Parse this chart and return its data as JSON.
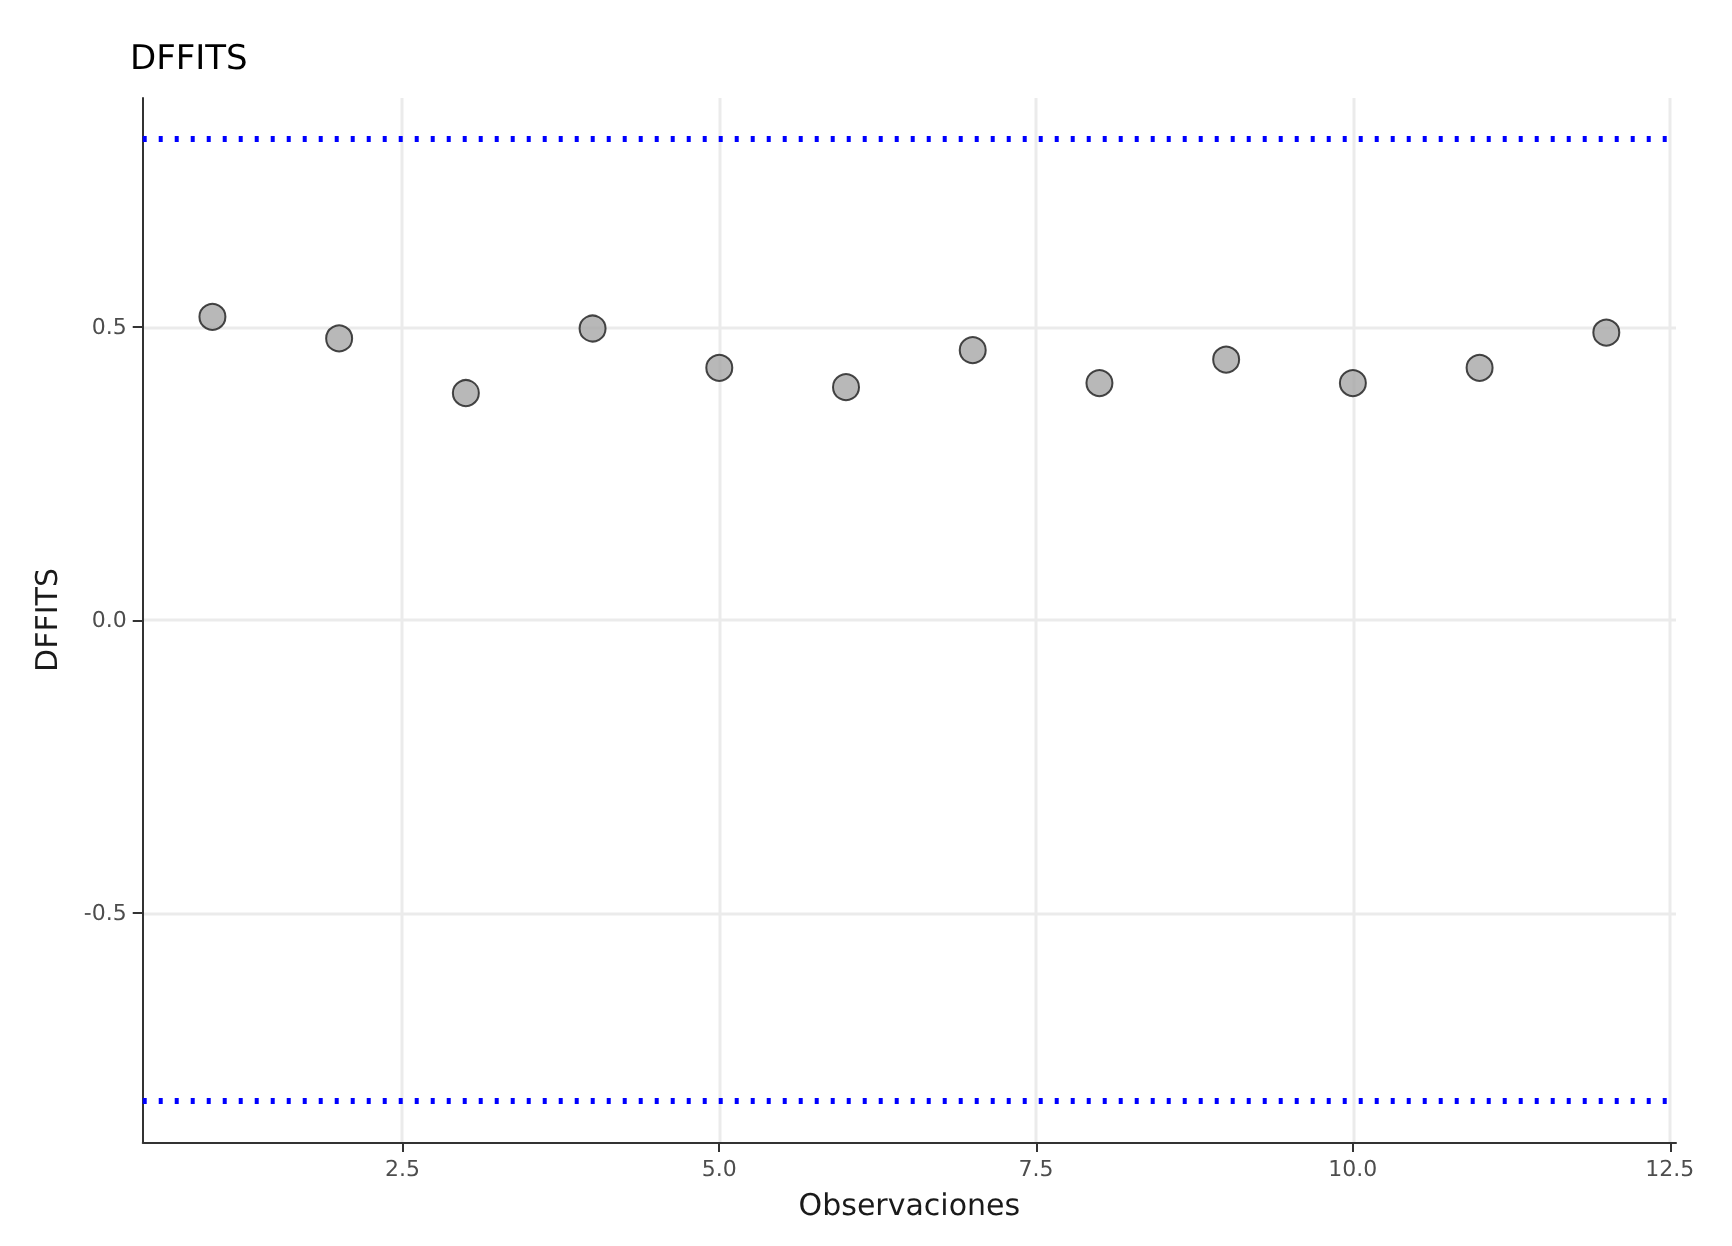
{
  "chart_data": {
    "type": "scatter",
    "title": "DFFITS",
    "xlabel": "Observaciones",
    "ylabel": "DFFITS",
    "x": [
      1,
      2,
      3,
      4,
      5,
      6,
      7,
      8,
      9,
      10,
      11,
      12
    ],
    "series": [
      {
        "color": "#a6a6a6",
        "values": [
          0.517,
          0.48,
          0.387,
          0.497,
          0.43,
          0.397,
          0.46,
          0.404,
          0.444,
          0.404,
          0.43,
          0.49
        ]
      }
    ],
    "xlim": [
      0.45,
      12.55
    ],
    "ylim": [
      -0.89,
      0.89
    ],
    "xticks": [
      2.5,
      {
        "value": 5,
        "label": "5.0"
      },
      7.5,
      {
        "value": 10,
        "label": "10.0"
      },
      12.5
    ],
    "yticks": [
      {
        "value": -0.5,
        "label": "-0.5"
      },
      {
        "value": 0,
        "label": "0.0"
      },
      {
        "value": 0.5,
        "label": "0.5"
      }
    ],
    "ref_lines": [
      {
        "axis": "y",
        "value": 0.816,
        "color": "#0000ff",
        "line_style": "dotted"
      },
      {
        "axis": "y",
        "value": -0.816,
        "color": "#0000ff",
        "line_style": "dotted"
      }
    ],
    "grid": true,
    "marker": "circle"
  }
}
